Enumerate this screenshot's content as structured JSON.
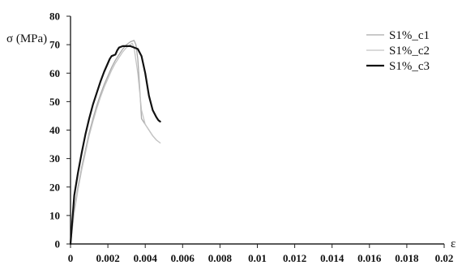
{
  "chart_data": {
    "type": "line",
    "ylabel": "σ (MPa)",
    "xlabel": "ε",
    "xlim": [
      0,
      0.02
    ],
    "ylim": [
      0,
      80
    ],
    "xticks": [
      "0",
      "0.002",
      "0.004",
      "0.006",
      "0.008",
      "0.01",
      "0.012",
      "0.014",
      "0.016",
      "0.018",
      "0.02"
    ],
    "yticks": [
      "0",
      "10",
      "20",
      "30",
      "40",
      "50",
      "60",
      "70",
      "80"
    ],
    "legend_position": "top-right",
    "series": [
      {
        "name": "S1%_c1",
        "color": "#a9a9a9",
        "width": 1.3,
        "x": [
          0,
          0.0002,
          0.0004,
          0.0006,
          0.0008,
          0.001,
          0.0012,
          0.0014,
          0.0016,
          0.0018,
          0.002,
          0.0022,
          0.0024,
          0.0026,
          0.0028,
          0.003,
          0.0032,
          0.0034,
          0.0035,
          0.0036,
          0.0037,
          0.0038,
          0.004,
          0.0042,
          0.0044,
          0.0046
        ],
        "y": [
          0,
          12,
          20,
          27,
          33,
          39,
          44,
          48.5,
          52.5,
          56,
          59,
          62,
          64.5,
          66.5,
          68.5,
          70,
          71,
          71.5,
          70,
          65,
          55,
          44,
          42,
          40,
          38,
          36.5
        ]
      },
      {
        "name": "S1%_c2",
        "color": "#c4c4c4",
        "width": 1.3,
        "x": [
          0,
          0.0002,
          0.0004,
          0.0006,
          0.0008,
          0.001,
          0.0012,
          0.0014,
          0.0016,
          0.0018,
          0.002,
          0.0022,
          0.0024,
          0.0026,
          0.0028,
          0.003,
          0.0032,
          0.0033,
          0.0034,
          0.0036,
          0.0038,
          0.004,
          0.0042,
          0.0044,
          0.0046,
          0.0048
        ],
        "y": [
          0,
          11,
          19,
          26,
          32,
          38,
          43,
          47.5,
          51.5,
          55,
          58,
          61,
          63.5,
          65.5,
          67.5,
          69,
          70,
          70.5,
          69,
          60,
          47,
          42,
          40,
          38,
          36.5,
          35.5
        ]
      },
      {
        "name": "S1%_c3",
        "color": "#111111",
        "width": 2.2,
        "x": [
          0,
          0.0002,
          0.0004,
          0.0006,
          0.0008,
          0.001,
          0.0012,
          0.0014,
          0.0016,
          0.0018,
          0.002,
          0.0021,
          0.0022,
          0.0024,
          0.0025,
          0.0026,
          0.0028,
          0.003,
          0.0032,
          0.0034,
          0.0036,
          0.0038,
          0.004,
          0.0042,
          0.0044,
          0.0046,
          0.0047,
          0.0048
        ],
        "y": [
          0,
          17,
          25,
          32,
          38.5,
          44,
          49,
          53,
          57,
          60.5,
          63.5,
          65,
          66,
          66.5,
          68,
          69,
          69.5,
          69.5,
          69.5,
          69,
          68.5,
          66,
          60,
          52,
          47,
          44.5,
          43.5,
          43
        ]
      }
    ]
  }
}
